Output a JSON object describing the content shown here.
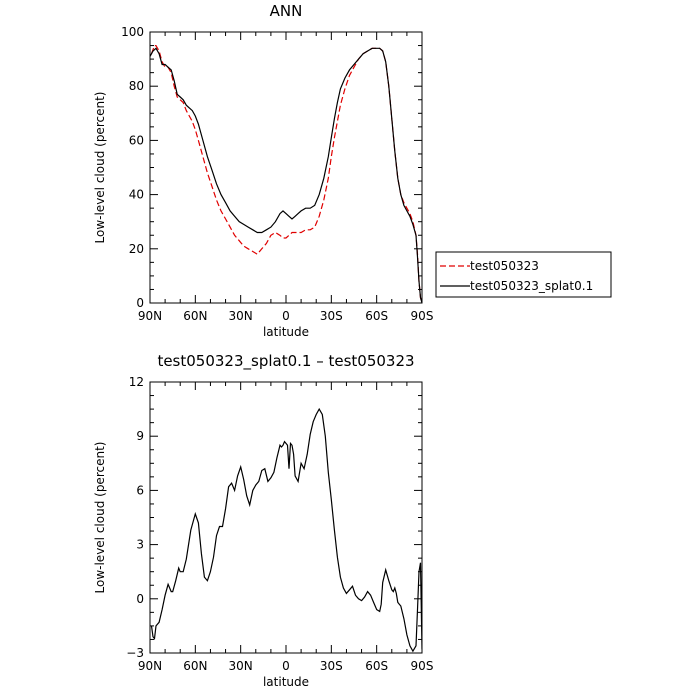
{
  "chart_data": [
    {
      "type": "line",
      "title": "ANN",
      "xlabel": "latitude",
      "ylabel": "Low-level cloud (percent)",
      "xlim": [
        90,
        -90
      ],
      "ylim": [
        0,
        100
      ],
      "x_ticks": [
        90,
        60,
        30,
        0,
        -30,
        -60,
        -90
      ],
      "x_tick_labels": [
        "90N",
        "60N",
        "30N",
        "0",
        "30S",
        "60S",
        "90S"
      ],
      "y_ticks": [
        0,
        20,
        40,
        60,
        80,
        100
      ],
      "y_tick_labels": [
        "0",
        "20",
        "40",
        "60",
        "80",
        "100"
      ],
      "legend_position": "right",
      "series": [
        {
          "name": "test050323",
          "color": "#e00000",
          "dash": "dashed",
          "x": [
            89,
            87,
            86,
            84,
            82,
            80,
            78,
            76,
            74,
            72,
            70,
            68,
            66,
            64,
            62,
            60,
            58,
            55,
            52,
            49,
            46,
            43,
            40,
            37,
            34,
            31,
            28,
            25,
            22,
            19,
            16,
            13,
            10,
            7,
            4,
            2,
            0,
            -2,
            -4,
            -6,
            -8,
            -10,
            -13,
            -16,
            -19,
            -22,
            -25,
            -28,
            -30,
            -32,
            -34,
            -36,
            -39,
            -42,
            -45,
            -48,
            -51,
            -54,
            -57,
            -60,
            -62,
            -64,
            -66,
            -68,
            -70,
            -72,
            -74,
            -76,
            -78,
            -80,
            -82,
            -84,
            -86,
            -87,
            -88,
            -89,
            -90
          ],
          "y": [
            92,
            95,
            95,
            93,
            89,
            87,
            87,
            85,
            80,
            76,
            75,
            74,
            71,
            69,
            67,
            64,
            60,
            54,
            48,
            43,
            38,
            34,
            31,
            28,
            25,
            23,
            21,
            20,
            19,
            18,
            20,
            22,
            25,
            26,
            25,
            24,
            24,
            25,
            26,
            26,
            26,
            26,
            27,
            27,
            28,
            32,
            38,
            46,
            54,
            61,
            67,
            73,
            79,
            84,
            87,
            90,
            92,
            93,
            94,
            94,
            94,
            93,
            89,
            80,
            68,
            56,
            46,
            40,
            37,
            35,
            33,
            30,
            25,
            18,
            8,
            2,
            0
          ]
        },
        {
          "name": "test050323_splat0.1",
          "color": "#000000",
          "dash": "solid",
          "x": [
            90,
            88,
            86,
            84,
            82,
            80,
            78,
            76,
            74,
            72,
            70,
            68,
            66,
            64,
            62,
            60,
            58,
            55,
            52,
            49,
            46,
            43,
            40,
            37,
            34,
            31,
            28,
            25,
            22,
            19,
            16,
            13,
            10,
            7,
            4,
            2,
            0,
            -2,
            -4,
            -6,
            -8,
            -10,
            -13,
            -16,
            -19,
            -22,
            -25,
            -28,
            -30,
            -32,
            -34,
            -36,
            -39,
            -42,
            -45,
            -48,
            -51,
            -54,
            -57,
            -60,
            -62,
            -64,
            -66,
            -68,
            -70,
            -72,
            -74,
            -76,
            -78,
            -80,
            -82,
            -84,
            -86,
            -87,
            -88,
            -89,
            -90
          ],
          "y": [
            91,
            93,
            94,
            92,
            88,
            88,
            87,
            86,
            82,
            77,
            76,
            75,
            73,
            72,
            71,
            69,
            66,
            60,
            54,
            49,
            44,
            40,
            37,
            34,
            32,
            30,
            29,
            28,
            27,
            26,
            26,
            27,
            28,
            30,
            33,
            34,
            33,
            32,
            31,
            32,
            33,
            34,
            35,
            35,
            36,
            40,
            46,
            54,
            61,
            68,
            74,
            79,
            83,
            86,
            88,
            90,
            92,
            93,
            94,
            94,
            94,
            93,
            89,
            80,
            68,
            56,
            46,
            40,
            36,
            34,
            32,
            29,
            25,
            17,
            8,
            2,
            0
          ]
        }
      ]
    },
    {
      "type": "line",
      "title": "test050323_splat0.1 – test050323",
      "xlabel": "latitude",
      "ylabel": "Low-level cloud (percent)",
      "xlim": [
        90,
        -90
      ],
      "ylim": [
        -3,
        12
      ],
      "x_ticks": [
        90,
        60,
        30,
        0,
        -30,
        -60,
        -90
      ],
      "x_tick_labels": [
        "90N",
        "60N",
        "30N",
        "0",
        "30S",
        "60S",
        "90S"
      ],
      "y_ticks": [
        -3,
        0,
        3,
        6,
        9,
        12
      ],
      "y_tick_labels": [
        "−3",
        "0",
        "3",
        "6",
        "9",
        "12"
      ],
      "series": [
        {
          "color": "#000000",
          "dash": "solid",
          "x": [
            89,
            88,
            87,
            86,
            84,
            82,
            80,
            78,
            76,
            75,
            73,
            71,
            70,
            68,
            66,
            63,
            60,
            58,
            56,
            54,
            52,
            50,
            48,
            46,
            44,
            42,
            40,
            38,
            36,
            34,
            32,
            30,
            28,
            26,
            24,
            22,
            20,
            18,
            16,
            14,
            12,
            10,
            8,
            6,
            4,
            3,
            2,
            1,
            0,
            -1,
            -2,
            -3,
            -4,
            -5,
            -6,
            -8,
            -10,
            -12,
            -14,
            -16,
            -18,
            -20,
            -22,
            -24,
            -26,
            -28,
            -30,
            -32,
            -34,
            -36,
            -38,
            -40,
            -42,
            -44,
            -46,
            -48,
            -50,
            -52,
            -54,
            -56,
            -58,
            -60,
            -62,
            -63,
            -64,
            -66,
            -68,
            -70,
            -71,
            -72,
            -73,
            -74,
            -75,
            -76,
            -78,
            -80,
            -82,
            -84,
            -86,
            -87,
            -88,
            -89,
            -90
          ],
          "y": [
            -1.5,
            -2.1,
            -2.2,
            -1.5,
            -1.3,
            -0.6,
            0.2,
            0.8,
            0.4,
            0.4,
            1.0,
            1.7,
            1.5,
            1.5,
            2.2,
            3.8,
            4.7,
            4.2,
            2.5,
            1.2,
            1.0,
            1.5,
            2.3,
            3.5,
            4.0,
            4.0,
            5.0,
            6.2,
            6.4,
            6.0,
            6.8,
            7.3,
            6.6,
            5.7,
            5.2,
            6.0,
            6.3,
            6.5,
            7.1,
            7.2,
            6.5,
            6.7,
            7.0,
            7.8,
            8.5,
            8.4,
            8.5,
            8.7,
            8.6,
            8.5,
            7.2,
            8.6,
            8.5,
            8.0,
            6.8,
            6.5,
            7.5,
            7.2,
            8.0,
            9.1,
            9.8,
            10.2,
            10.5,
            10.2,
            9.0,
            7.0,
            5.5,
            3.8,
            2.3,
            1.2,
            0.6,
            0.3,
            0.5,
            0.7,
            0.2,
            0.0,
            -0.1,
            0.1,
            0.4,
            0.2,
            -0.2,
            -0.6,
            -0.7,
            -0.3,
            0.9,
            1.6,
            1.0,
            0.5,
            0.4,
            0.6,
            0.3,
            -0.2,
            -0.3,
            -0.4,
            -1.1,
            -2.0,
            -2.6,
            -2.9,
            -2.6,
            -0.6,
            1.5,
            2.0,
            -2.8
          ]
        }
      ]
    }
  ],
  "legend": {
    "entries": [
      "test050323",
      "test050323_splat0.1"
    ]
  }
}
